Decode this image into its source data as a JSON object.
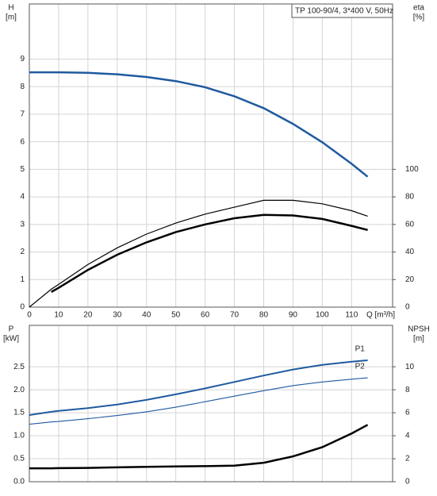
{
  "chart_data": [
    {
      "type": "line",
      "title": "TP 100-90/4, 3*400 V, 50Hz",
      "ylabel": "H",
      "yunit": "[m]",
      "y2label": "eta",
      "y2unit": "[%]",
      "xlabel": "Q [m³/h]",
      "x": [
        0,
        7.5,
        10,
        20,
        30,
        40,
        50,
        60,
        70,
        80,
        90,
        100,
        110,
        115.5
      ],
      "xlim": [
        0,
        124
      ],
      "xticks": [
        0,
        10,
        20,
        30,
        40,
        50,
        60,
        70,
        80,
        90,
        100,
        110
      ],
      "ylim": [
        0,
        11
      ],
      "yticks": [
        0,
        1,
        2,
        3,
        4,
        5,
        6,
        7,
        8,
        9
      ],
      "y2lim": [
        0,
        220
      ],
      "y2ticks": [
        0,
        20,
        40,
        60,
        80,
        100
      ],
      "grid": true,
      "series": [
        {
          "color": "#1f5aa0",
          "linewidth": 2.5,
          "values": [
            8.52,
            8.52,
            8.52,
            8.5,
            8.45,
            8.35,
            8.2,
            7.98,
            7.65,
            7.22,
            6.65,
            5.98,
            5.2,
            4.73
          ]
        },
        {
          "color": "#000000",
          "linewidth": 1.2,
          "axis": "y2",
          "values": [
            0,
            13,
            16.5,
            31,
            43,
            53,
            61,
            67.5,
            72.5,
            77.5,
            77.5,
            75,
            70,
            66
          ]
        },
        {
          "color": "#000000",
          "linewidth": 2.5,
          "axis": "y2",
          "values": [
            null,
            11,
            14,
            27,
            38,
            47,
            54.5,
            60,
            64.5,
            67,
            66.5,
            64,
            59,
            56
          ]
        }
      ]
    },
    {
      "type": "line",
      "ylabel": "P",
      "yunit": "[kW]",
      "y2label": "NPSH",
      "y2unit": "[m]",
      "x": [
        0,
        7.5,
        10,
        20,
        30,
        40,
        50,
        60,
        70,
        80,
        90,
        100,
        110,
        115.5
      ],
      "xlim": [
        0,
        124
      ],
      "xticks": [
        0,
        10,
        20,
        30,
        40,
        50,
        60,
        70,
        80,
        90,
        100,
        110
      ],
      "ylim": [
        0,
        3.4
      ],
      "yticks": [
        {
          "value": 0,
          "label": "0.0"
        },
        0.5,
        {
          "value": 1,
          "label": "1.0"
        },
        1.5,
        {
          "value": 2,
          "label": "2.0"
        },
        2.5
      ],
      "y2lim": [
        0,
        13.6
      ],
      "y2ticks": [
        0,
        2,
        4,
        6,
        8,
        10
      ],
      "grid": true,
      "series": [
        {
          "name": "P1",
          "color": "#1f5aa0",
          "linewidth": 2,
          "values": [
            1.45,
            1.52,
            1.54,
            1.6,
            1.68,
            1.78,
            1.9,
            2.03,
            2.17,
            2.31,
            2.44,
            2.54,
            2.61,
            2.64
          ]
        },
        {
          "name": "P2",
          "color": "#1f5aa0",
          "linewidth": 1.1,
          "values": [
            1.25,
            1.3,
            1.31,
            1.37,
            1.44,
            1.52,
            1.62,
            1.74,
            1.86,
            1.98,
            2.09,
            2.17,
            2.23,
            2.26
          ]
        },
        {
          "color": "#000000",
          "linewidth": 2.5,
          "axis": "y2",
          "values": [
            1.17,
            1.17,
            1.18,
            1.2,
            1.25,
            1.3,
            1.33,
            1.35,
            1.4,
            1.65,
            2.2,
            3.0,
            4.2,
            4.95
          ]
        }
      ]
    }
  ]
}
